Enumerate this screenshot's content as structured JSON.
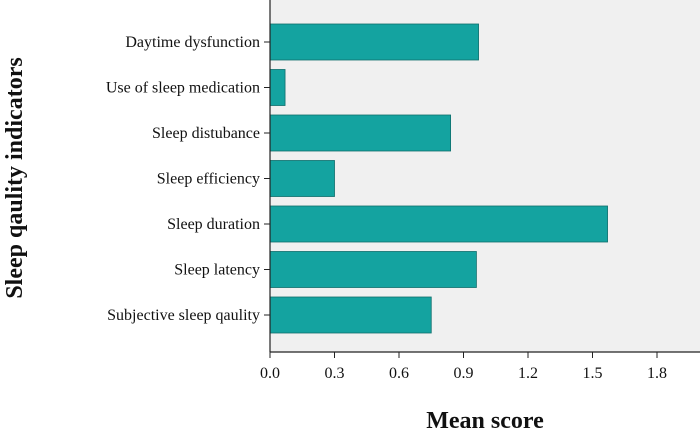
{
  "chart_data": {
    "type": "bar",
    "orientation": "horizontal",
    "categories": [
      "Daytime dysfunction",
      "Use of sleep medication",
      "Sleep distubance",
      "Sleep efficiency",
      "Sleep duration",
      "Sleep latency",
      "Subjective sleep qaulity"
    ],
    "values": [
      0.97,
      0.07,
      0.84,
      0.3,
      1.57,
      0.96,
      0.75
    ],
    "xlabel": "Mean score",
    "ylabel": "Sleep qaulity indicators",
    "xlim": [
      0,
      2.0
    ],
    "xticks": [
      "0.0",
      "0.3",
      "0.6",
      "0.9",
      "1.2",
      "1.5",
      "1.8"
    ],
    "xtick_values": [
      0,
      0.3,
      0.6,
      0.9,
      1.2,
      1.5,
      1.8
    ],
    "grid": false,
    "legend": "none",
    "colors": {
      "bar": "#14a3a0",
      "bar_edge": "#0e6e6c",
      "plot_background": "#f0f0f0",
      "axis": "#222222"
    }
  }
}
